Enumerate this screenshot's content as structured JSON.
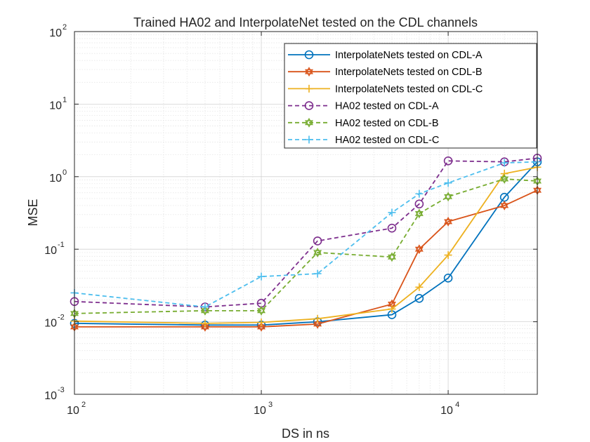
{
  "chart_data": {
    "type": "line",
    "title": "Trained HA02 and InterpolateNet tested on the CDL channels",
    "xlabel": "DS in ns",
    "ylabel": "MSE",
    "xscale": "log",
    "yscale": "log",
    "xlim": [
      100,
      30000
    ],
    "ylim": [
      0.001,
      100
    ],
    "grid": true,
    "minor_grid": true,
    "legend_position": "top-right",
    "x_ticks": [
      {
        "base": "10",
        "exp": "2",
        "value": 100
      },
      {
        "base": "10",
        "exp": "3",
        "value": 1000
      },
      {
        "base": "10",
        "exp": "4",
        "value": 10000
      }
    ],
    "y_ticks": [
      {
        "base": "10",
        "exp": "-3",
        "value": 0.001
      },
      {
        "base": "10",
        "exp": "-2",
        "value": 0.01
      },
      {
        "base": "10",
        "exp": "-1",
        "value": 0.1
      },
      {
        "base": "10",
        "exp": "0",
        "value": 1
      },
      {
        "base": "10",
        "exp": "1",
        "value": 10
      },
      {
        "base": "10",
        "exp": "2",
        "value": 100
      }
    ],
    "x": [
      100,
      500,
      1000,
      2000,
      5000,
      7000,
      10000,
      20000,
      30000
    ],
    "series": [
      {
        "name": "InterpolateNets tested on CDL-A",
        "color": "#0072BD",
        "dash": "solid",
        "marker": "circle",
        "values": [
          0.0095,
          0.009,
          0.009,
          0.01,
          0.0125,
          0.021,
          0.04,
          0.52,
          1.6
        ]
      },
      {
        "name": "InterpolateNets tested on CDL-B",
        "color": "#D95319",
        "dash": "solid",
        "marker": "hexagram",
        "values": [
          0.0085,
          0.0085,
          0.0085,
          0.0093,
          0.0175,
          0.1,
          0.24,
          0.4,
          0.65
        ]
      },
      {
        "name": "InterpolateNets tested on CDL-C",
        "color": "#EDB120",
        "dash": "solid",
        "marker": "plus",
        "values": [
          0.0102,
          0.0095,
          0.0098,
          0.011,
          0.015,
          0.03,
          0.083,
          1.1,
          1.35
        ]
      },
      {
        "name": "HA02 tested on CDL-A",
        "color": "#7E2F8E",
        "dash": "dashed",
        "marker": "circle",
        "values": [
          0.019,
          0.016,
          0.018,
          0.13,
          0.195,
          0.42,
          1.65,
          1.6,
          1.8
        ]
      },
      {
        "name": "HA02 tested on CDL-B",
        "color": "#77AC30",
        "dash": "dashed",
        "marker": "hexagram",
        "values": [
          0.013,
          0.0142,
          0.0142,
          0.09,
          0.078,
          0.31,
          0.53,
          0.93,
          0.87
        ]
      },
      {
        "name": "HA02 tested on CDL-C",
        "color": "#4DBEEE",
        "dash": "dashed",
        "marker": "plus",
        "values": [
          0.025,
          0.016,
          0.042,
          0.046,
          0.32,
          0.58,
          0.82,
          1.55,
          1.6
        ]
      }
    ]
  }
}
